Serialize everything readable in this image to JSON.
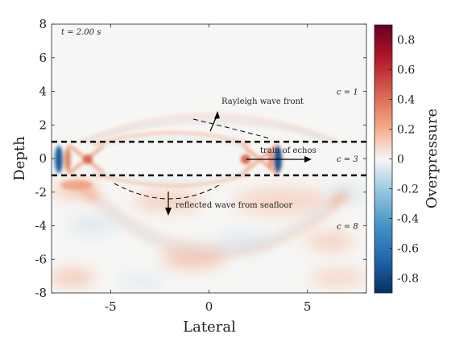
{
  "chart_data": {
    "type": "heatmap",
    "title": "",
    "xlabel": "Lateral",
    "ylabel": "Depth",
    "xlim": [
      -8,
      8
    ],
    "ylim": [
      -8,
      8
    ],
    "xticks": [
      -5,
      0,
      5
    ],
    "xtick_labels": [
      "-5",
      "0",
      "5"
    ],
    "yticks": [
      -8,
      -6,
      -4,
      -2,
      0,
      2,
      4,
      6,
      8
    ],
    "ytick_labels": [
      "-8",
      "-6",
      "-4",
      "-2",
      "0",
      "2",
      "4",
      "6",
      "8"
    ],
    "colorbar": {
      "label": "Overpressure",
      "range": [
        -0.9,
        0.9
      ],
      "ticks": [
        -0.8,
        -0.6,
        -0.4,
        -0.2,
        0,
        0.2,
        0.4,
        0.6,
        0.8
      ],
      "tick_labels": [
        "-0.8",
        "-0.6",
        "-0.4",
        "-0.2",
        "0",
        "0.2",
        "0.4",
        "0.6",
        "0.8"
      ],
      "colormap": [
        "#053061",
        "#2166ac",
        "#4393c3",
        "#92c5de",
        "#f7f7f7",
        "#f4a582",
        "#d6604d",
        "#b2182b",
        "#67001f"
      ]
    },
    "layer_boundaries_y": [
      1,
      -1
    ],
    "time_label": "t = 2.00 s",
    "layers": [
      {
        "label": "c = 1",
        "y": 4
      },
      {
        "label": "c = 3",
        "y": 0
      },
      {
        "label": "c = 8",
        "y": -4
      }
    ],
    "annotations": [
      {
        "label": "Rayleigh wave front",
        "y": 3.4
      },
      {
        "label": "train of echos",
        "y": 0.5
      },
      {
        "label": "reflected wave from seafloor",
        "y": -2.9
      }
    ]
  }
}
